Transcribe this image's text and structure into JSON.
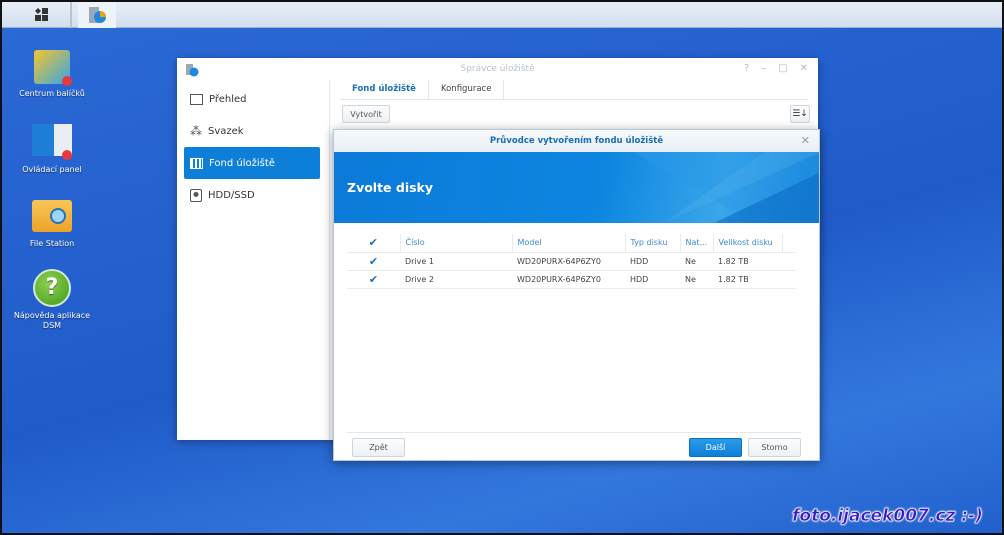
{
  "desktop": {
    "icons": [
      {
        "label": "Centrum balíčků"
      },
      {
        "label": "Ovládací panel"
      },
      {
        "label": "File Station"
      },
      {
        "label": "Nápověda aplikace DSM"
      }
    ]
  },
  "window": {
    "title": "Správce úložiště",
    "sidebar": [
      {
        "label": "Přehled",
        "icon": "overview-icon"
      },
      {
        "label": "Svazek",
        "icon": "volume-icon"
      },
      {
        "label": "Fond úložiště",
        "icon": "storage-pool-icon",
        "active": true
      },
      {
        "label": "HDD/SSD",
        "icon": "hdd-icon"
      }
    ],
    "tabs": [
      {
        "label": "Fond úložiště",
        "active": true
      },
      {
        "label": "Konfigurace"
      }
    ],
    "create_label": "Vytvořit"
  },
  "wizard": {
    "title": "Průvodce vytvořením fondu úložiště",
    "heading": "Zvolte disky",
    "columns": [
      "Číslo",
      "Model",
      "Typ disku",
      "Nat...",
      "Velikost disku"
    ],
    "rows": [
      {
        "checked": true,
        "cells": [
          "Drive 1",
          "WD20PURX-64P6ZY0",
          "HDD",
          "Ne",
          "1.82 TB"
        ]
      },
      {
        "checked": true,
        "cells": [
          "Drive 2",
          "WD20PURX-64P6ZY0",
          "HDD",
          "Ne",
          "1.82 TB"
        ]
      }
    ],
    "back_label": "Zpět",
    "next_label": "Další",
    "cancel_label": "Storno"
  },
  "watermark": "foto.ijacek007.cz :-)",
  "colors": {
    "accent": "#0e7fd9",
    "desktop": "#1f5bc9"
  }
}
